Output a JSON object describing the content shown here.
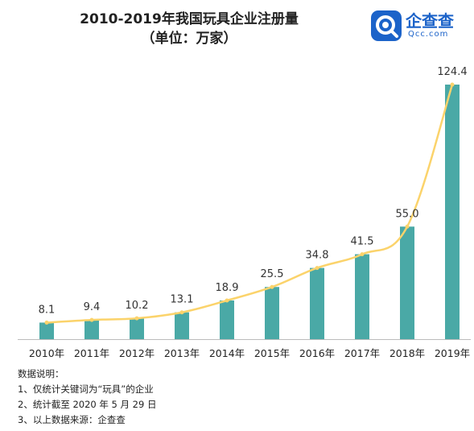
{
  "chart_data": {
    "type": "bar",
    "title": "2010-2019年我国玩具企业注册量",
    "subtitle": "（单位：万家）",
    "categories": [
      "2010年",
      "2011年",
      "2012年",
      "2013年",
      "2014年",
      "2015年",
      "2016年",
      "2017年",
      "2018年",
      "2019年"
    ],
    "values": [
      8.1,
      9.4,
      10.2,
      13.1,
      18.9,
      25.5,
      34.8,
      41.5,
      55.0,
      124.4
    ],
    "value_labels": [
      "8.1",
      "9.4",
      "10.2",
      "13.1",
      "18.9",
      "25.5",
      "34.8",
      "41.5",
      "55.0",
      "124.4"
    ],
    "overlay_line": true,
    "ylim": [
      0,
      124.4
    ],
    "grid": false,
    "colors": {
      "bar": "#4aa9a6",
      "line": "#fbd36b",
      "axis": "#bbbbbb"
    }
  },
  "logo": {
    "name": "企查查",
    "sub": "Qcc.com",
    "color": "#1c63c9"
  },
  "notes": {
    "heading": "数据说明：",
    "lines": [
      "1、仅统计关键词为“玩具”的企业",
      "2、统计截至 2020 年 5 月 29 日",
      "3、以上数据来源：企查查"
    ]
  }
}
